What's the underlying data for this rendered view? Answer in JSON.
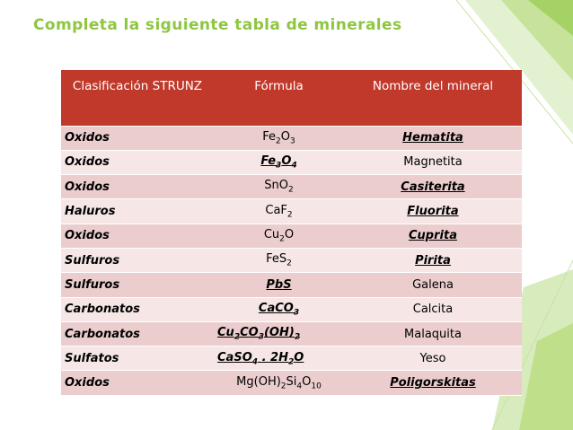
{
  "title": "Completa la siguiente tabla de minerales",
  "colors": {
    "title": "#8dc63f",
    "header": "#c0392b",
    "row_odd": "#ebcdcd",
    "row_even": "#f6e6e6",
    "deco_green": "#8dc63f"
  },
  "table": {
    "headers": [
      "Clasificación STRUNZ",
      "Fórmula",
      "Nombre del mineral"
    ],
    "rows": [
      {
        "clasificacion": "Oxidos",
        "formula": "Fe2O3",
        "nombre": "Hematita",
        "formula_style": "plain",
        "nombre_style": "bold-underline"
      },
      {
        "clasificacion": "Oxidos",
        "formula": "Fe3O4",
        "nombre": "Magnetita",
        "formula_style": "bold-underline",
        "nombre_style": "plain"
      },
      {
        "clasificacion": "Oxidos",
        "formula": "SnO2",
        "nombre": "Casiterita",
        "formula_style": "plain",
        "nombre_style": "bold-underline"
      },
      {
        "clasificacion": "Haluros",
        "formula": "CaF2",
        "nombre": "Fluorita",
        "formula_style": "plain",
        "nombre_style": "bold-underline"
      },
      {
        "clasificacion": "Oxidos",
        "formula": "Cu2O",
        "nombre": "Cuprita",
        "formula_style": "plain",
        "nombre_style": "bold-underline"
      },
      {
        "clasificacion": "Sulfuros",
        "formula": "FeS2",
        "nombre": "Pirita",
        "formula_style": "plain",
        "nombre_style": "bold-underline"
      },
      {
        "clasificacion": "Sulfuros",
        "formula": "PbS",
        "nombre": "Galena",
        "formula_style": "bold-underline",
        "nombre_style": "plain"
      },
      {
        "clasificacion": "Carbonatos",
        "formula": "CaCO3",
        "nombre": "Calcita",
        "formula_style": "bold-underline",
        "nombre_style": "plain"
      },
      {
        "clasificacion": "Carbonatos",
        "formula": "Cu2CO3(OH)2",
        "nombre": "Malaquita",
        "formula_style": "bold-underline",
        "nombre_style": "plain"
      },
      {
        "clasificacion": "Sulfatos",
        "formula": "CaSO4 . 2H2O",
        "nombre": "Yeso",
        "formula_style": "bold-underline",
        "nombre_style": "plain"
      },
      {
        "clasificacion": "Oxidos",
        "formula": "Mg(OH)2Si4O10",
        "nombre": "Poligorskitas",
        "formula_style": "plain",
        "nombre_style": "bold-underline"
      }
    ]
  }
}
